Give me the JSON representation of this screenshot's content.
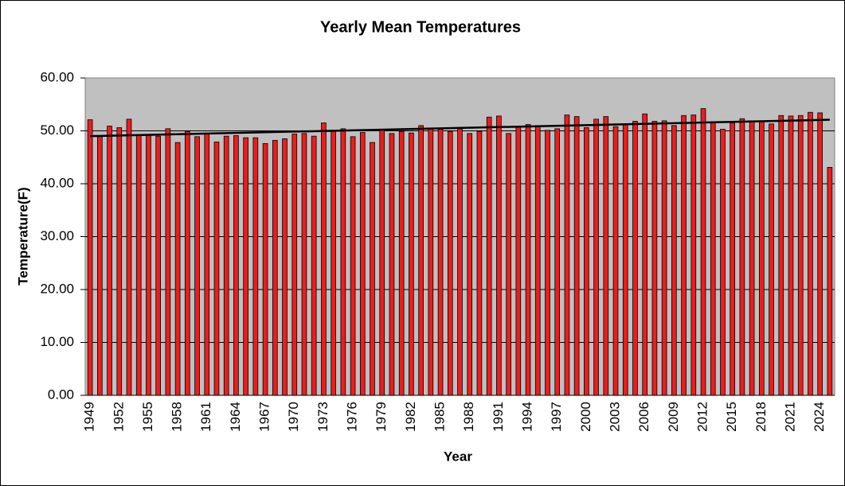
{
  "chart_data": {
    "type": "bar",
    "title": "Yearly Mean Temperatures",
    "x_label": "Year",
    "y_label": "Temperature(F)",
    "categories": [
      "1949",
      null,
      null,
      "1952",
      null,
      null,
      "1955",
      null,
      null,
      "1958",
      null,
      null,
      "1961",
      null,
      null,
      "1964",
      null,
      null,
      "1967",
      null,
      null,
      "1970",
      null,
      null,
      "1973",
      null,
      null,
      "1976",
      null,
      null,
      "1979",
      null,
      null,
      "1982",
      null,
      null,
      "1985",
      null,
      null,
      "1988",
      null,
      null,
      "1991",
      null,
      null,
      "1994",
      null,
      null,
      "1997",
      null,
      null,
      "2000",
      null,
      null,
      "2003",
      null,
      null,
      "2006",
      null,
      null,
      "2009",
      null,
      null,
      "2012",
      null,
      null,
      "2015",
      null,
      null,
      "2018",
      null,
      null,
      "2021",
      null,
      null,
      "2024",
      null
    ],
    "values": [
      52.1,
      49.1,
      50.9,
      50.6,
      52.2,
      49.3,
      49.3,
      49.0,
      50.4,
      47.8,
      49.9,
      48.9,
      49.5,
      47.9,
      49.0,
      49.1,
      48.7,
      48.7,
      47.6,
      48.2,
      48.5,
      49.4,
      49.5,
      49.0,
      51.5,
      50.0,
      50.4,
      48.9,
      49.7,
      47.8,
      50.2,
      49.5,
      49.9,
      49.6,
      51.0,
      50.4,
      50.3,
      49.9,
      50.4,
      49.5,
      49.9,
      52.6,
      52.8,
      49.5,
      50.8,
      51.2,
      51.0,
      50.1,
      50.4,
      53.0,
      52.7,
      50.6,
      52.2,
      52.7,
      50.8,
      51.3,
      51.8,
      53.2,
      51.8,
      51.9,
      51.0,
      52.9,
      53.0,
      54.2,
      51.5,
      50.3,
      51.5,
      52.3,
      51.9,
      51.7,
      51.3,
      52.9,
      52.8,
      52.9,
      53.5,
      53.4,
      43.1
    ],
    "color": "#ee1c1c",
    "trend": {
      "start": 49.0,
      "end": 52.1
    },
    "ylim": [
      0,
      60
    ],
    "yticks": [
      {
        "value": 0,
        "label": "0.00"
      },
      {
        "value": 10,
        "label": "10.00"
      },
      {
        "value": 20,
        "label": "20.00"
      },
      {
        "value": 30,
        "label": "30.00"
      },
      {
        "value": 40,
        "label": "40.00"
      },
      {
        "value": 50,
        "label": "50.00"
      },
      {
        "value": 60,
        "label": "60.00"
      }
    ],
    "grid": true
  }
}
